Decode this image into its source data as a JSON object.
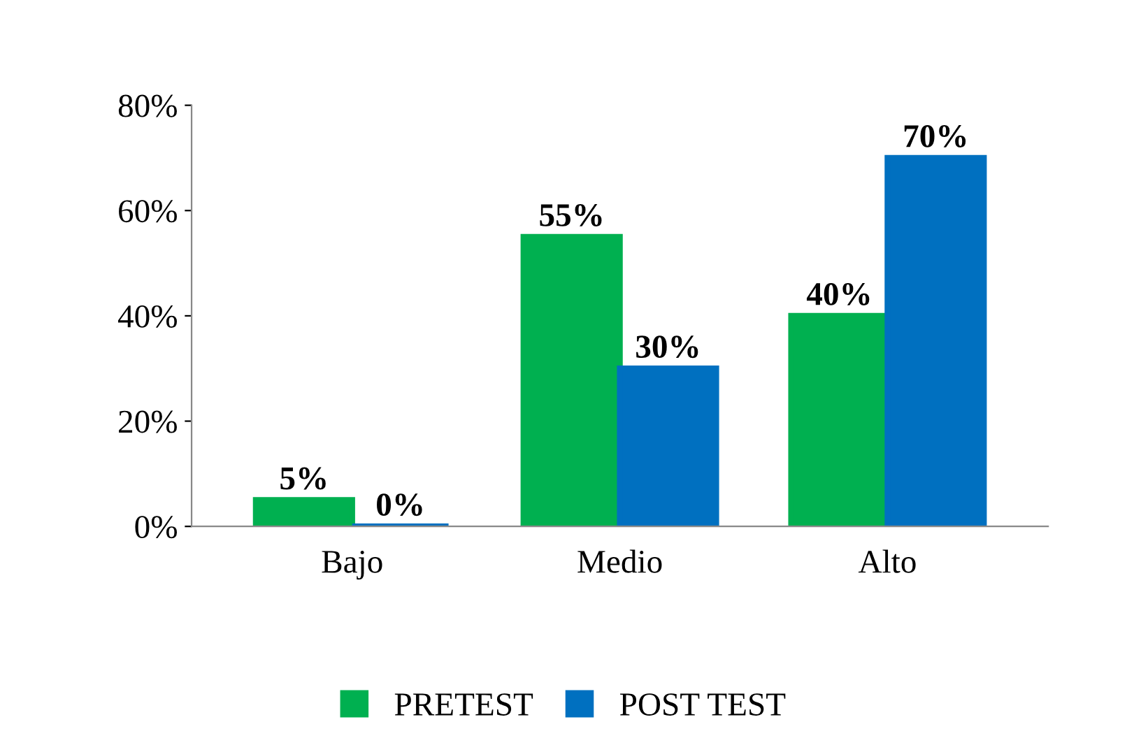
{
  "chart_data": {
    "type": "bar",
    "categories": [
      "Bajo",
      "Medio",
      "Alto"
    ],
    "series": [
      {
        "name": "PRETEST",
        "color": "#00b050",
        "values": [
          5,
          55,
          40
        ],
        "value_labels": [
          "5%",
          "55%",
          "40%"
        ]
      },
      {
        "name": "POST TEST",
        "color": "#0070c0",
        "values": [
          0,
          30,
          70
        ],
        "value_labels": [
          "0%",
          "30%",
          "70%"
        ]
      }
    ],
    "ylim": [
      0,
      80
    ],
    "yticks": [
      {
        "value": 0,
        "label": "0%"
      },
      {
        "value": 20,
        "label": "20%"
      },
      {
        "value": 40,
        "label": "40%"
      },
      {
        "value": 60,
        "label": "60%"
      },
      {
        "value": 80,
        "label": "80%"
      }
    ],
    "grid": false,
    "legend": "bottom"
  }
}
